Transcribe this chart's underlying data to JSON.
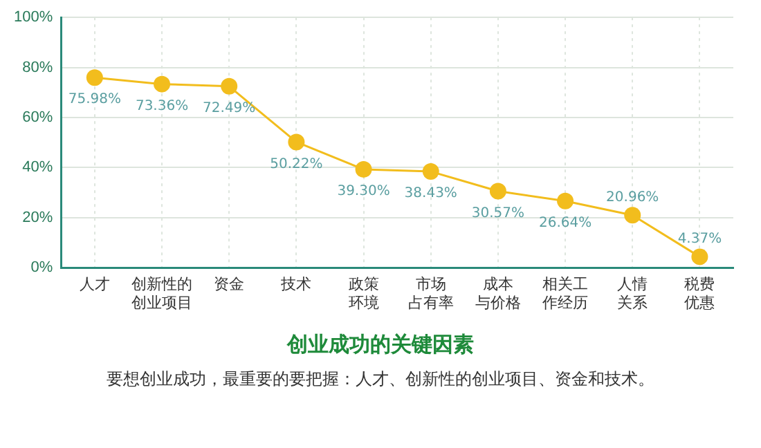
{
  "chart_data": {
    "type": "line",
    "title": "创业成功的关键因素",
    "subtitle": "要想创业成功，最重要的要把握：人才、创新性的创业项目、资金和技术。",
    "categories": [
      "人才",
      "创新性的创业项目",
      "资金",
      "技术",
      "政策环境",
      "市场占有率",
      "成本与价格",
      "相关工作经历",
      "人情关系",
      "税费优惠"
    ],
    "series": [
      {
        "color": "#f2bd1d",
        "values": [
          75.98,
          73.36,
          72.49,
          50.22,
          39.3,
          38.43,
          30.57,
          26.64,
          20.96,
          4.37
        ]
      }
    ],
    "value_labels": [
      "75.98%",
      "73.36%",
      "72.49%",
      "50.22%",
      "39.30%",
      "38.43%",
      "30.57%",
      "26.64%",
      "20.96%",
      "4.37%"
    ],
    "ylim": [
      0,
      100
    ],
    "yticks": [
      {
        "value": 0,
        "label": "0%"
      },
      {
        "value": 20,
        "label": "20%"
      },
      {
        "value": 40,
        "label": "40%"
      },
      {
        "value": 60,
        "label": "60%"
      },
      {
        "value": 80,
        "label": "80%"
      },
      {
        "value": 100,
        "label": "100%"
      }
    ],
    "grid": true,
    "legend": false,
    "marker": "circle",
    "line_style": "solid"
  }
}
